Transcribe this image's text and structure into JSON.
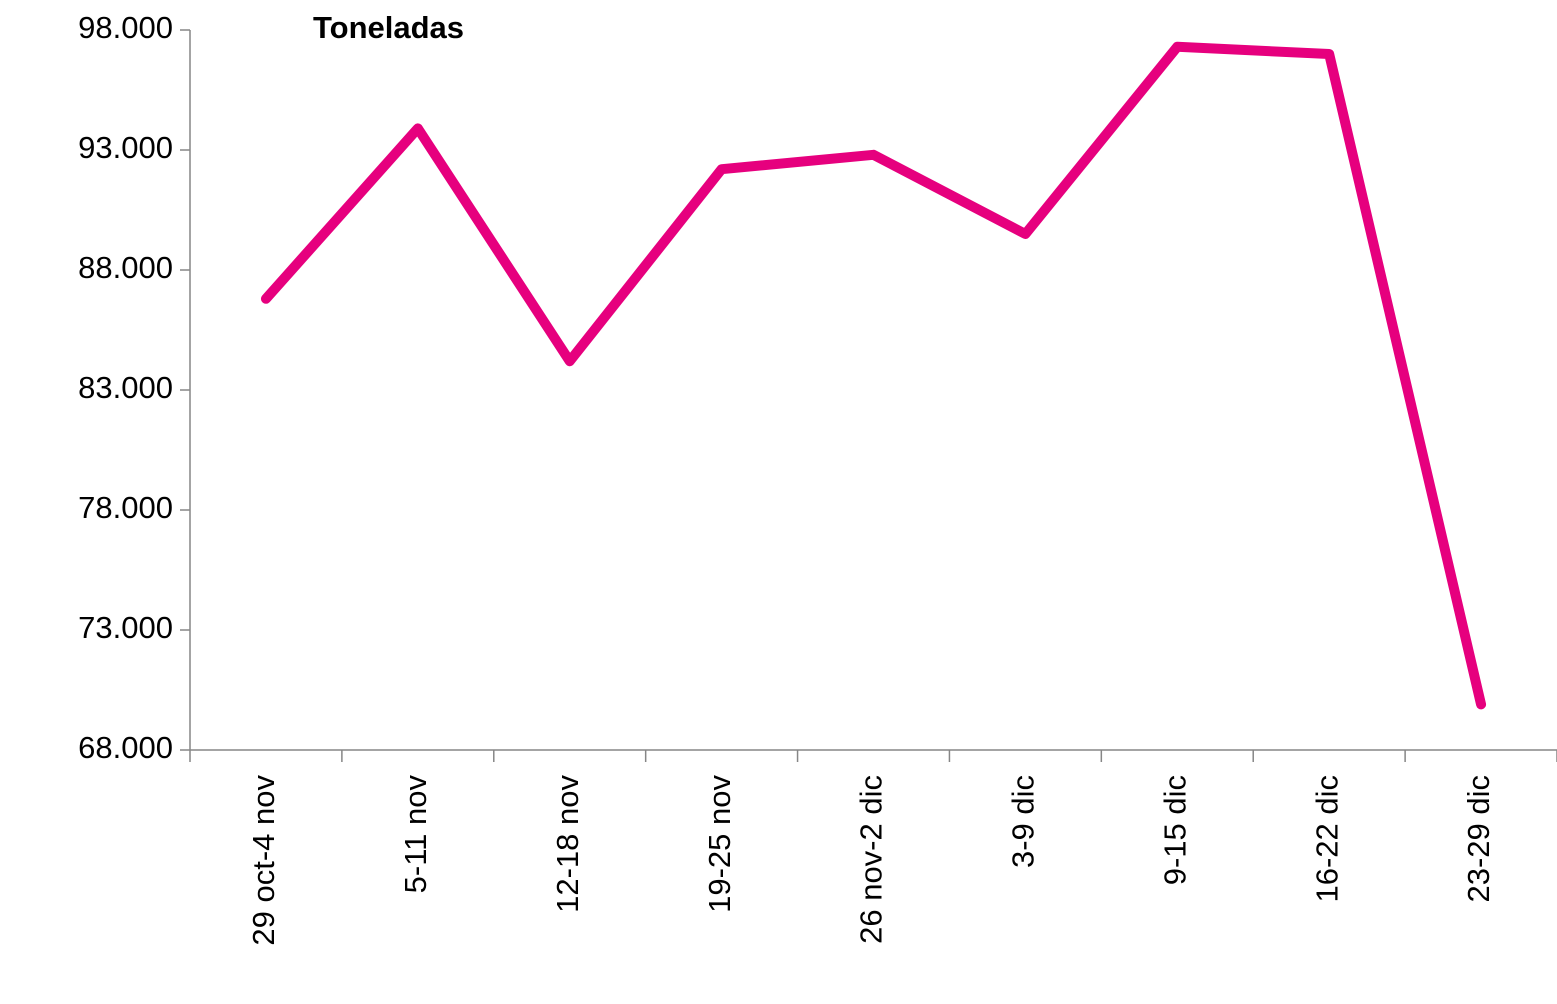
{
  "chart_data": {
    "type": "line",
    "title": "Toneladas",
    "categories": [
      "29 oct-4 nov",
      "5-11 nov",
      "12-18 nov",
      "19-25 nov",
      "26 nov-2 dic",
      "3-9 dic",
      "9-15 dic",
      "16-22 dic",
      "23-29 dic"
    ],
    "series": [
      {
        "name": "Toneladas",
        "color": "#e6007e",
        "values": [
          86800,
          93900,
          84200,
          92200,
          92800,
          89500,
          97300,
          97000,
          69900
        ]
      }
    ],
    "ylim": [
      68000,
      98000
    ],
    "yticks": [
      {
        "value": 68000,
        "label": "68.000"
      },
      {
        "value": 73000,
        "label": "73.000"
      },
      {
        "value": 78000,
        "label": "78.000"
      },
      {
        "value": 83000,
        "label": "83.000"
      },
      {
        "value": 88000,
        "label": "88.000"
      },
      {
        "value": 93000,
        "label": "93.000"
      },
      {
        "value": 98000,
        "label": "98.000"
      }
    ],
    "grid": false
  }
}
